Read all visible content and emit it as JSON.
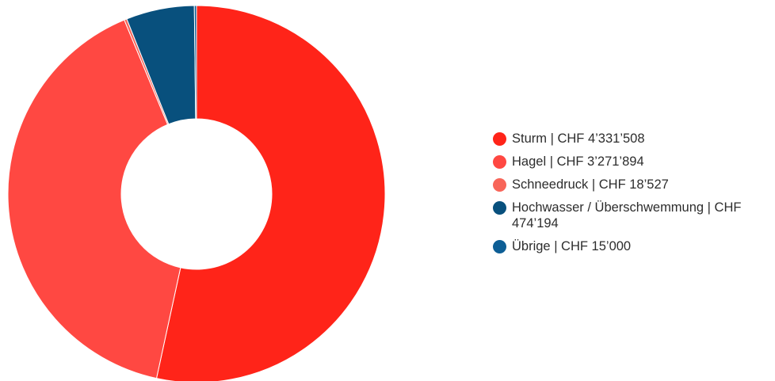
{
  "chart_data": {
    "type": "pie",
    "variant": "donut",
    "currency": "CHF",
    "categories": [
      "Sturm",
      "Hagel",
      "Schneedruck",
      "Hochwasser / Überschwemmung",
      "Übrige"
    ],
    "values": [
      4331508,
      3271894,
      18527,
      474194,
      15000
    ],
    "value_labels": [
      "CHF 4’331’508",
      "CHF 3’271’894",
      "CHF 18’527",
      "CHF 474’194",
      "CHF 15’000"
    ],
    "legend_labels": [
      "Sturm | CHF 4’331’508",
      "Hagel | CHF 3’271’894",
      "Schneedruck | CHF 18’527",
      "Hochwasser / Überschwemmung | CHF 474’194",
      "Übrige | CHF 15’000"
    ],
    "colors": [
      "#ff2419",
      "#ff4842",
      "#f86559",
      "#08507d",
      "#0d5e95"
    ],
    "legend_position": "right"
  }
}
